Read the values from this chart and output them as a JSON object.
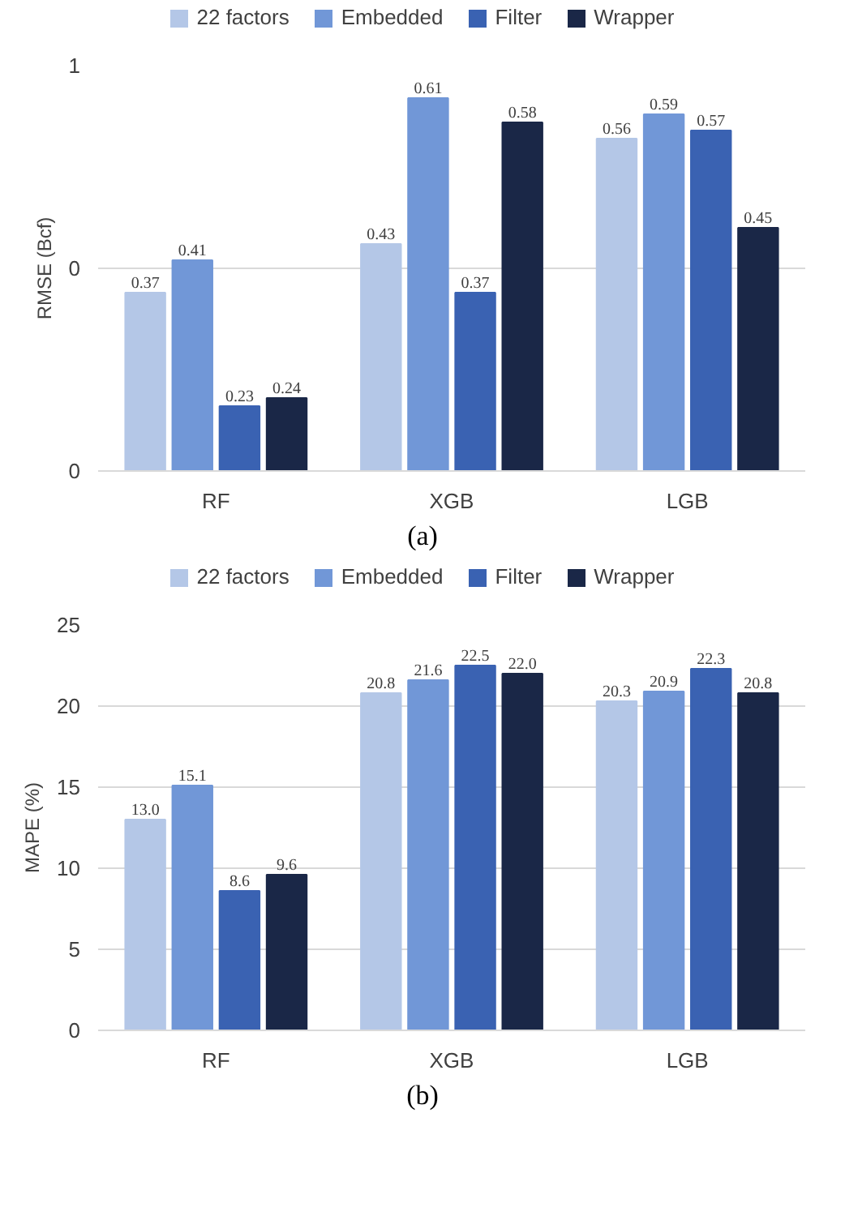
{
  "chart_data": [
    {
      "type": "bar",
      "ylabel": "RMSE (Bcf)",
      "categories": [
        "RF",
        "XGB",
        "LGB"
      ],
      "ylim": [
        0.15,
        0.65
      ],
      "yticks": [
        {
          "value": 0.15,
          "label": "0"
        },
        {
          "value": 0.4,
          "label": "0"
        },
        {
          "value": 0.65,
          "label": "1"
        }
      ],
      "grid": "y",
      "legend": "top",
      "annotations": [
        "(a)"
      ],
      "series": [
        {
          "name": "22 factors",
          "color": "#b4c7e7",
          "values": [
            0.37,
            0.43,
            0.56
          ],
          "value_labels": [
            "0.37",
            "0.43",
            "0.56"
          ]
        },
        {
          "name": "Embedded",
          "color": "#7197d7",
          "values": [
            0.41,
            0.61,
            0.59
          ],
          "value_labels": [
            "0.41",
            "0.61",
            "0.59"
          ]
        },
        {
          "name": "Filter",
          "color": "#3a62b2",
          "values": [
            0.23,
            0.37,
            0.57
          ],
          "value_labels": [
            "0.23",
            "0.37",
            "0.57"
          ]
        },
        {
          "name": "Wrapper",
          "color": "#1a2747",
          "values": [
            0.24,
            0.58,
            0.45
          ],
          "value_labels": [
            "0.24",
            "0.58",
            "0.45"
          ]
        }
      ]
    },
    {
      "type": "bar",
      "ylabel": "MAPE (%)",
      "categories": [
        "RF",
        "XGB",
        "LGB"
      ],
      "ylim": [
        0,
        25
      ],
      "yticks": [
        0,
        5,
        10,
        15,
        20,
        25
      ],
      "grid": "y",
      "legend": "top",
      "annotations": [
        "(b)"
      ],
      "series": [
        {
          "name": "22 factors",
          "color": "#b4c7e7",
          "values": [
            13.0,
            20.8,
            20.3
          ],
          "value_labels": [
            "13.0",
            "20.8",
            "20.3"
          ]
        },
        {
          "name": "Embedded",
          "color": "#7197d7",
          "values": [
            15.1,
            21.6,
            20.9
          ],
          "value_labels": [
            "15.1",
            "21.6",
            "20.9"
          ]
        },
        {
          "name": "Filter",
          "color": "#3a62b2",
          "values": [
            8.6,
            22.5,
            22.3
          ],
          "value_labels": [
            "8.6",
            "22.5",
            "22.3"
          ]
        },
        {
          "name": "Wrapper",
          "color": "#1a2747",
          "values": [
            9.6,
            22.0,
            20.8
          ],
          "value_labels": [
            "9.6",
            "22.0",
            "20.8"
          ]
        }
      ]
    }
  ]
}
